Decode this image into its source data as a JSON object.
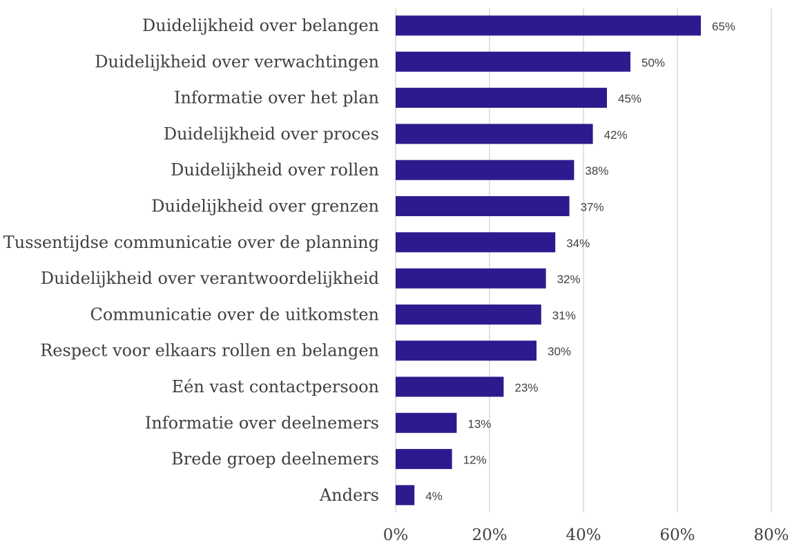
{
  "chart_data": {
    "type": "bar",
    "orientation": "horizontal",
    "title": "",
    "xlabel": "",
    "ylabel": "",
    "categories": [
      "Duidelijkheid over belangen",
      "Duidelijkheid over verwachtingen",
      "Informatie over het plan",
      "Duidelijkheid over proces",
      "Duidelijkheid over rollen",
      "Duidelijkheid over grenzen",
      "Tussentijdse communicatie over de planning",
      "Duidelijkheid over verantwoordelijkheid",
      "Communicatie over de uitkomsten",
      "Respect voor elkaars rollen en belangen",
      "Eén vast contactpersoon",
      "Informatie over deelnemers",
      "Brede groep deelnemers",
      "Anders"
    ],
    "values": [
      65,
      50,
      45,
      42,
      38,
      37,
      34,
      32,
      31,
      30,
      23,
      13,
      12,
      4
    ],
    "data_labels": [
      "65%",
      "50%",
      "45%",
      "42%",
      "38%",
      "37%",
      "34%",
      "32%",
      "31%",
      "30%",
      "23%",
      "13%",
      "12%",
      "4%"
    ],
    "xlim": [
      0,
      80
    ],
    "xticks": [
      0,
      20,
      40,
      60,
      80
    ],
    "xtick_labels": [
      "0%",
      "20%",
      "40%",
      "60%",
      "80%"
    ],
    "grid": "vertical",
    "legend": "none",
    "bar_color": "#2e1a8e",
    "grid_color": "#d9d9d9",
    "text_color": "#404040"
  }
}
